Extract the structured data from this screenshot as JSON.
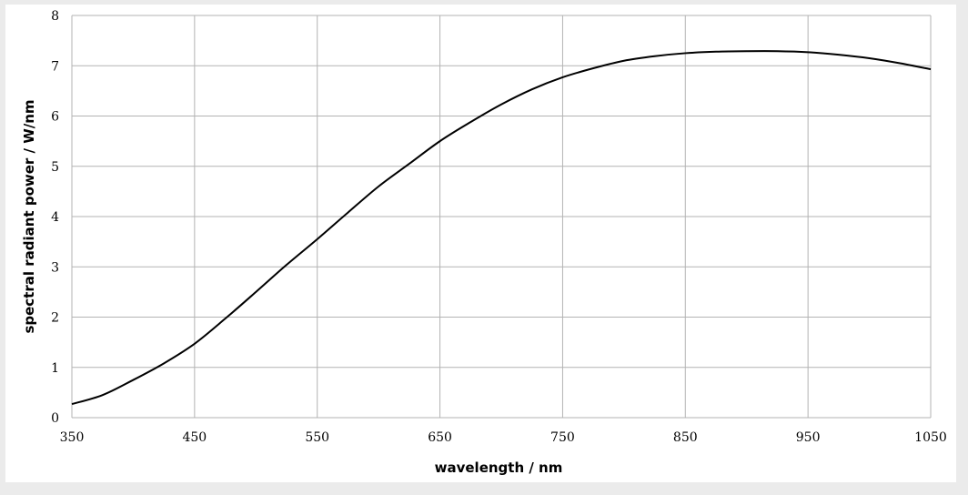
{
  "chart_data": {
    "type": "line",
    "title": "",
    "xlabel": "wavelength / nm",
    "ylabel": "spectral radiant power  / W/nm",
    "xlim": [
      350,
      1050
    ],
    "ylim": [
      0,
      8
    ],
    "x_ticks": [
      "350",
      "450",
      "550",
      "650",
      "750",
      "850",
      "950",
      "1050"
    ],
    "y_ticks": [
      "0",
      "1",
      "2",
      "3",
      "4",
      "5",
      "6",
      "7",
      "8"
    ],
    "grid": true,
    "legend": "none",
    "line_color": "#000000",
    "series": [
      {
        "x": [
          350,
          375,
          400,
          425,
          450,
          475,
          500,
          525,
          550,
          575,
          600,
          625,
          650,
          675,
          700,
          725,
          750,
          775,
          800,
          825,
          850,
          875,
          900,
          925,
          950,
          975,
          1000,
          1025,
          1050
        ],
        "values": [
          0.27,
          0.45,
          0.75,
          1.08,
          1.47,
          1.97,
          2.5,
          3.04,
          3.55,
          4.08,
          4.6,
          5.05,
          5.5,
          5.88,
          6.23,
          6.53,
          6.77,
          6.95,
          7.1,
          7.19,
          7.25,
          7.28,
          7.29,
          7.29,
          7.27,
          7.22,
          7.15,
          7.05,
          6.93
        ]
      }
    ]
  }
}
